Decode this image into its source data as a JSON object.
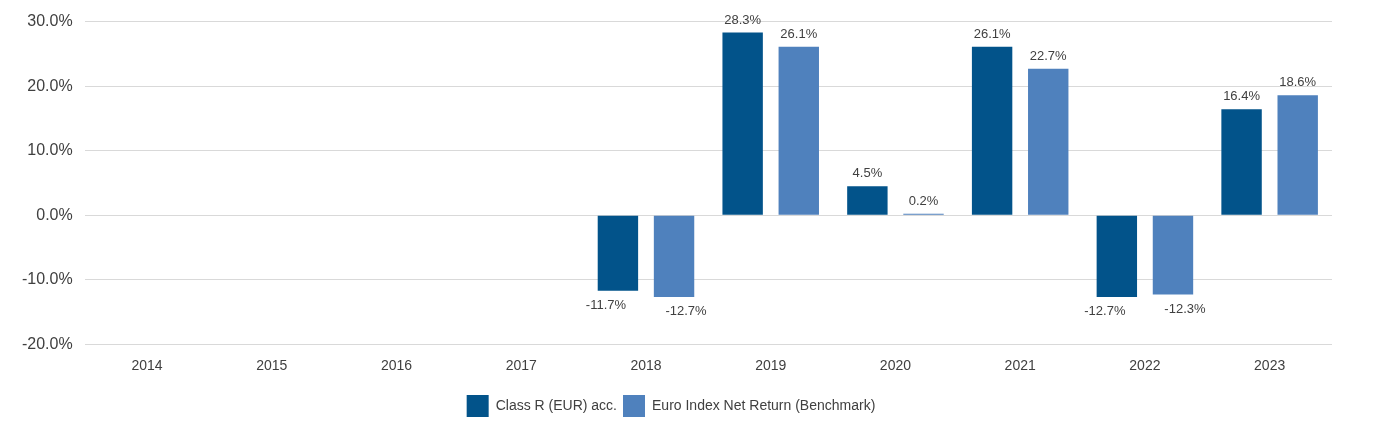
{
  "chart_data": {
    "type": "bar",
    "categories": [
      "2014",
      "2015",
      "2016",
      "2017",
      "2018",
      "2019",
      "2020",
      "2021",
      "2022",
      "2023"
    ],
    "series": [
      {
        "name": "Class R (EUR) acc.",
        "color": "#02538a",
        "values": [
          null,
          null,
          null,
          null,
          -11.7,
          28.3,
          4.5,
          26.1,
          -12.7,
          16.4
        ],
        "value_labels": [
          null,
          null,
          null,
          null,
          "-11.7%",
          "28.3%",
          "4.5%",
          "26.1%",
          "-12.7%",
          "16.4%"
        ]
      },
      {
        "name": "Euro Index Net Return (Benchmark)",
        "color": "#4f81bd",
        "values": [
          null,
          null,
          null,
          null,
          -12.7,
          26.1,
          0.2,
          22.7,
          -12.3,
          18.6
        ],
        "value_labels": [
          null,
          null,
          null,
          null,
          "-12.7%",
          "26.1%",
          "0.2%",
          "22.7%",
          "-12.3%",
          "18.6%"
        ]
      }
    ],
    "ylim": [
      -20,
      30
    ],
    "yticks": [
      {
        "value": -20,
        "label": "-20.0%"
      },
      {
        "value": -10,
        "label": "-10.0%"
      },
      {
        "value": 0,
        "label": "0.0%"
      },
      {
        "value": 10,
        "label": "10.0%"
      },
      {
        "value": 20,
        "label": "20.0%"
      },
      {
        "value": 30,
        "label": "30.0%"
      }
    ],
    "grid": "y",
    "legend": "bottom"
  }
}
